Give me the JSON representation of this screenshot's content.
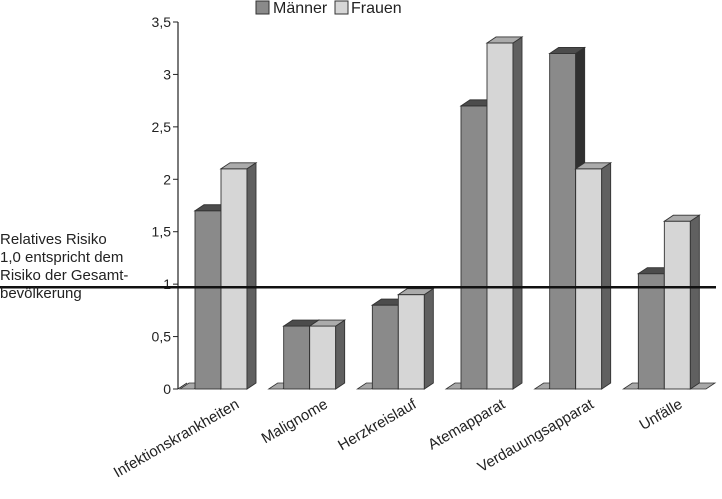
{
  "chart_data": {
    "type": "bar",
    "three_d": true,
    "categories": [
      "Infektionskrankheiten",
      "Malignome",
      "Herzkreislauf",
      "Atemapparat",
      "Verdauungsapparat",
      "Unfälle"
    ],
    "series": [
      {
        "name": "Männer",
        "values": [
          1.7,
          0.6,
          0.8,
          2.7,
          3.2,
          1.1
        ],
        "color": "#8a8a8a"
      },
      {
        "name": "Frauen",
        "values": [
          2.1,
          0.6,
          0.9,
          3.3,
          2.1,
          1.6
        ],
        "color": "#d6d6d6"
      }
    ],
    "ylim": [
      0,
      3.5
    ],
    "yticks": [
      "0",
      "0,5",
      "1",
      "1,5",
      "2",
      "2,5",
      "3",
      "3,5"
    ],
    "reference_line": 0.97,
    "annotation_lines": [
      "Relatives Risiko",
      "1,0 entspricht dem",
      "Risiko der Gesamt-",
      "bevölkerung"
    ],
    "legend_position": "top",
    "grid": false
  }
}
